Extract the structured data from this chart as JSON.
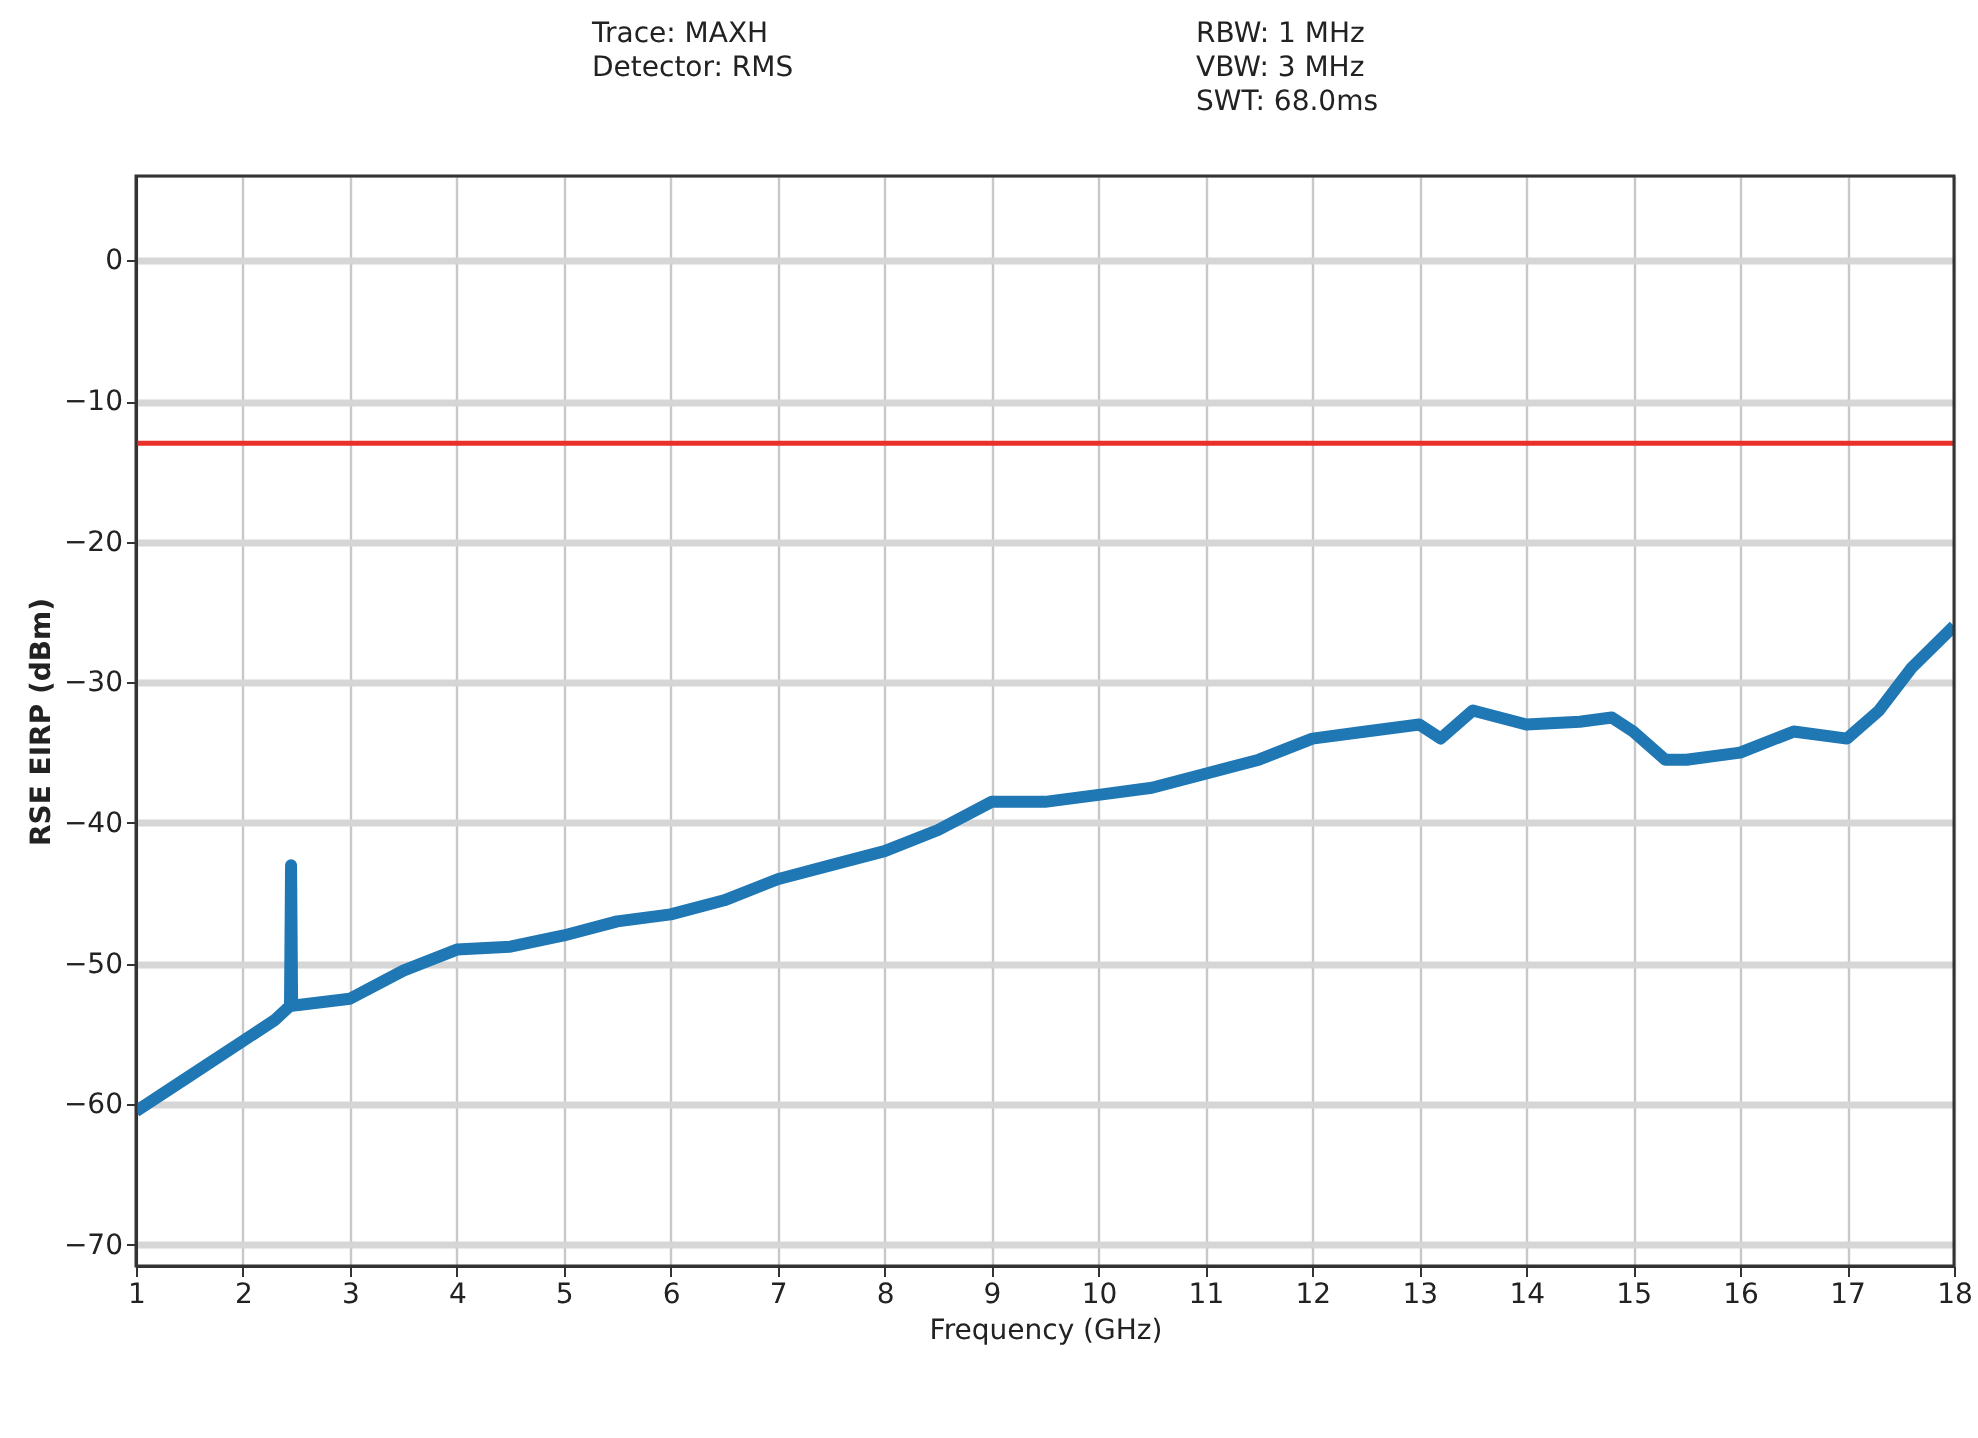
{
  "chart_data": {
    "type": "line",
    "xlabel": "Frequency (GHz)",
    "ylabel": "RSE EIRP (dBm)",
    "annotations": [
      "Trace: MAXH",
      "Detector: RMS",
      "RBW: 1 MHz",
      "VBW: 3 MHz",
      "SWT: 68.0ms"
    ],
    "xlim": [
      1,
      18
    ],
    "xticks": [
      1,
      2,
      3,
      4,
      5,
      6,
      7,
      8,
      9,
      10,
      11,
      12,
      13,
      14,
      15,
      16,
      17,
      18
    ],
    "ylim": [
      -71.5,
      6
    ],
    "yticks": [
      0,
      -10,
      -20,
      -30,
      -40,
      -50,
      -60,
      -70
    ],
    "grid": true,
    "marker": "none",
    "line_style": "solid",
    "ref_lines": [
      {
        "axis": "y",
        "value": -13,
        "color": "#e8312a"
      }
    ],
    "series": [
      {
        "color": "#1f77b4",
        "x": [
          1,
          1.5,
          2,
          2.3,
          2.44,
          2.45,
          2.46,
          3,
          3.5,
          4,
          4.5,
          5,
          5.5,
          6,
          6.5,
          7,
          7.5,
          8,
          8.5,
          9,
          9.5,
          10,
          10.5,
          11,
          11.5,
          12,
          12.5,
          13,
          13.2,
          13.5,
          14,
          14.5,
          14.8,
          15,
          15.3,
          15.5,
          16,
          16.5,
          17,
          17.3,
          17.6,
          18
        ],
        "values": [
          -60.5,
          -58,
          -55.5,
          -54,
          -53,
          -43,
          -53,
          -52.5,
          -50.5,
          -49,
          -48.8,
          -48,
          -47,
          -46.5,
          -45.5,
          -44,
          -43,
          -42,
          -40.5,
          -38.5,
          -38.5,
          -38,
          -37.5,
          -36.5,
          -35.5,
          -34,
          -33.5,
          -33,
          -34,
          -32,
          -33,
          -32.8,
          -32.5,
          -33.5,
          -35.5,
          -35.5,
          -35,
          -33.5,
          -34,
          -32,
          -29,
          -26
        ]
      }
    ]
  }
}
